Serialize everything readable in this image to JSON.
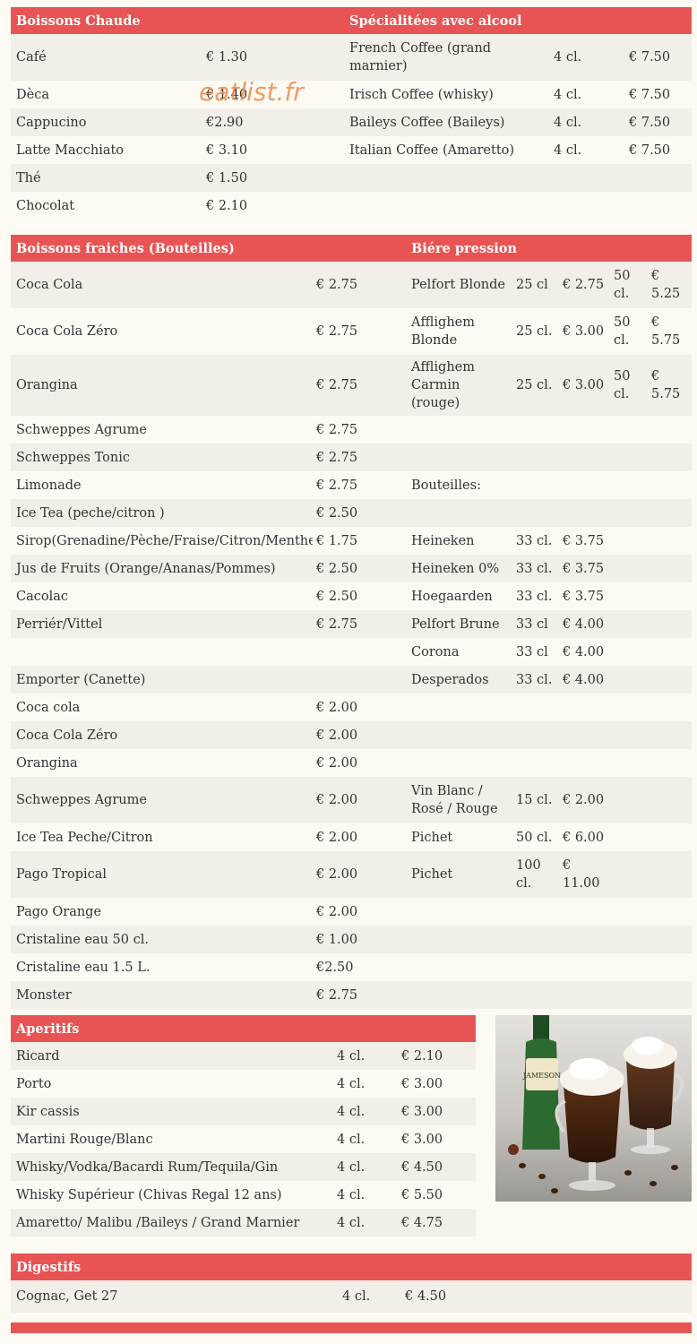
{
  "watermark": "eatlist.fr",
  "hot": {
    "title": "Boissons Chaude",
    "items": [
      {
        "name": "Café",
        "price": "€ 1.30"
      },
      {
        "name": "Dèca",
        "price": "€ 1.40"
      },
      {
        "name": "Cappucino",
        "price": "€2.90"
      },
      {
        "name": "Latte Macchiato",
        "price": "€ 3.10"
      },
      {
        "name": "Thé",
        "price": "€ 1.50"
      },
      {
        "name": "Chocolat",
        "price": "€ 2.10"
      }
    ]
  },
  "spec": {
    "title": "Spécialitées avec alcool",
    "items": [
      {
        "name": "French Coffee (grand marnier)",
        "qty": "4 cl.",
        "price": "€ 7.50"
      },
      {
        "name": "Irisch Coffee (whisky)",
        "qty": "4 cl.",
        "price": "€ 7.50"
      },
      {
        "name": "Baileys Coffee (Baileys)",
        "qty": "4 cl.",
        "price": "€ 7.50"
      },
      {
        "name": "Italian Coffee (Amaretto)",
        "qty": "4 cl.",
        "price": "€ 7.50"
      }
    ]
  },
  "fresh": {
    "title": "Boissons fraiches (Bouteilles)",
    "items": [
      {
        "name": "Coca Cola",
        "price": "€ 2.75"
      },
      {
        "name": "Coca Cola Zéro",
        "price": "€ 2.75"
      },
      {
        "name": "Orangina",
        "price": "€ 2.75"
      },
      {
        "name": "Schweppes Agrume",
        "price": "€ 2.75"
      },
      {
        "name": "Schweppes Tonic",
        "price": "€ 2.75"
      },
      {
        "name": "Limonade",
        "price": "€ 2.75"
      },
      {
        "name": "Ice Tea (peche/citron )",
        "price": "€ 2.50"
      },
      {
        "name": "Sirop(Grenadine/Pèche/Fraise/Citron/Menthe",
        "price": "€ 1.75"
      },
      {
        "name": "Jus de Fruits (Orange/Ananas/Pommes)",
        "price": "€ 2.50"
      },
      {
        "name": "Cacolac",
        "price": "€ 2.50"
      },
      {
        "name": "Perriér/Vittel",
        "price": "€ 2.75"
      },
      {
        "name": "",
        "price": ""
      },
      {
        "name": "Emporter (Canette)",
        "price": ""
      },
      {
        "name": "Coca cola",
        "price": "€ 2.00"
      },
      {
        "name": "Coca Cola Zéro",
        "price": "€ 2.00"
      },
      {
        "name": "Orangina",
        "price": "€ 2.00"
      },
      {
        "name": "Schweppes Agrume",
        "price": "€ 2.00"
      },
      {
        "name": "Ice Tea Peche/Citron",
        "price": "€ 2.00"
      },
      {
        "name": "Pago Tropical",
        "price": "€ 2.00"
      },
      {
        "name": "Pago Orange",
        "price": "€ 2.00"
      },
      {
        "name": "Cristaline eau 50 cl.",
        "price": "€ 1.00"
      },
      {
        "name": "Cristaline eau 1.5 L.",
        "price": "€2.50"
      },
      {
        "name": "Monster",
        "price": "€ 2.75"
      }
    ]
  },
  "beer": {
    "title": "Biére pression",
    "items": [
      {
        "name": "Pelfort Blonde",
        "q1": "25 cl",
        "p1": "€ 2.75",
        "q2": "50 cl.",
        "p2": "€ 5.25"
      },
      {
        "name": "Afflighem Blonde",
        "q1": "25 cl.",
        "p1": "€ 3.00",
        "q2": "50 cl.",
        "p2": "€ 5.75"
      },
      {
        "name": "Afflighem Carmin (rouge)",
        "q1": "25 cl.",
        "p1": "€ 3.00",
        "q2": "50 cl.",
        "p2": "€ 5.75"
      },
      {
        "name": "",
        "q1": "",
        "p1": "",
        "q2": "",
        "p2": ""
      },
      {
        "name": "",
        "q1": "",
        "p1": "",
        "q2": "",
        "p2": ""
      },
      {
        "name": "Bouteilles:",
        "q1": "",
        "p1": "",
        "q2": "",
        "p2": ""
      },
      {
        "name": "",
        "q1": "",
        "p1": "",
        "q2": "",
        "p2": ""
      },
      {
        "name": "Heineken",
        "q1": "33 cl.",
        "p1": "€ 3.75",
        "q2": "",
        "p2": ""
      },
      {
        "name": "Heineken 0%",
        "q1": "33 cl.",
        "p1": "€ 3.75",
        "q2": "",
        "p2": ""
      },
      {
        "name": "Hoegaarden",
        "q1": "33 cl.",
        "p1": "€ 3.75",
        "q2": "",
        "p2": ""
      },
      {
        "name": "Pelfort Brune",
        "q1": "33 cl",
        "p1": "€ 4.00",
        "q2": "",
        "p2": ""
      },
      {
        "name": "Corona",
        "q1": "33 cl",
        "p1": "€ 4.00",
        "q2": "",
        "p2": ""
      },
      {
        "name": "Desperados",
        "q1": "33 cl.",
        "p1": "€ 4.00",
        "q2": "",
        "p2": ""
      },
      {
        "name": "",
        "q1": "",
        "p1": "",
        "q2": "",
        "p2": ""
      },
      {
        "name": "",
        "q1": "",
        "p1": "",
        "q2": "",
        "p2": ""
      },
      {
        "name": "",
        "q1": "",
        "p1": "",
        "q2": "",
        "p2": ""
      },
      {
        "name": "Vin Blanc / Rosé / Rouge",
        "q1": "15 cl.",
        "p1": "€ 2.00",
        "q2": "",
        "p2": ""
      },
      {
        "name": "Pichet",
        "q1": "50 cl.",
        "p1": "€ 6.00",
        "q2": "",
        "p2": ""
      },
      {
        "name": "Pichet",
        "q1": "100 cl.",
        "p1": "€ 11.00",
        "q2": "",
        "p2": ""
      },
      {
        "name": "",
        "q1": "",
        "p1": "",
        "q2": "",
        "p2": ""
      },
      {
        "name": "",
        "q1": "",
        "p1": "",
        "q2": "",
        "p2": ""
      },
      {
        "name": "",
        "q1": "",
        "p1": "",
        "q2": "",
        "p2": ""
      },
      {
        "name": "",
        "q1": "",
        "p1": "",
        "q2": "",
        "p2": ""
      }
    ]
  },
  "aperitifs": {
    "title": "Aperitifs",
    "items": [
      {
        "name": "Ricard",
        "qty": "4 cl.",
        "price": "€ 2.10"
      },
      {
        "name": "Porto",
        "qty": "4 cl.",
        "price": "€ 3.00"
      },
      {
        "name": "Kir cassis",
        "qty": "4 cl.",
        "price": "€ 3.00"
      },
      {
        "name": "Martini Rouge/Blanc",
        "qty": "4 cl.",
        "price": "€ 3.00"
      },
      {
        "name": "Whisky/Vodka/Bacardi Rum/Tequila/Gin",
        "qty": "4 cl.",
        "price": "€ 4.50"
      },
      {
        "name": "Whisky Supérieur (Chivas Regal 12 ans)",
        "qty": "4 cl.",
        "price": "€ 5.50"
      },
      {
        "name": "Amaretto/ Malibu /Baileys / Grand Marnier",
        "qty": "4 cl.",
        "price": "€ 4.75"
      }
    ]
  },
  "digestifs": {
    "title": "Digestifs",
    "items": [
      {
        "name": "Cognac, Get 27",
        "qty": "4 cl.",
        "price": "€ 4.50"
      }
    ]
  },
  "photo": {
    "label_text": "JAMESON"
  }
}
